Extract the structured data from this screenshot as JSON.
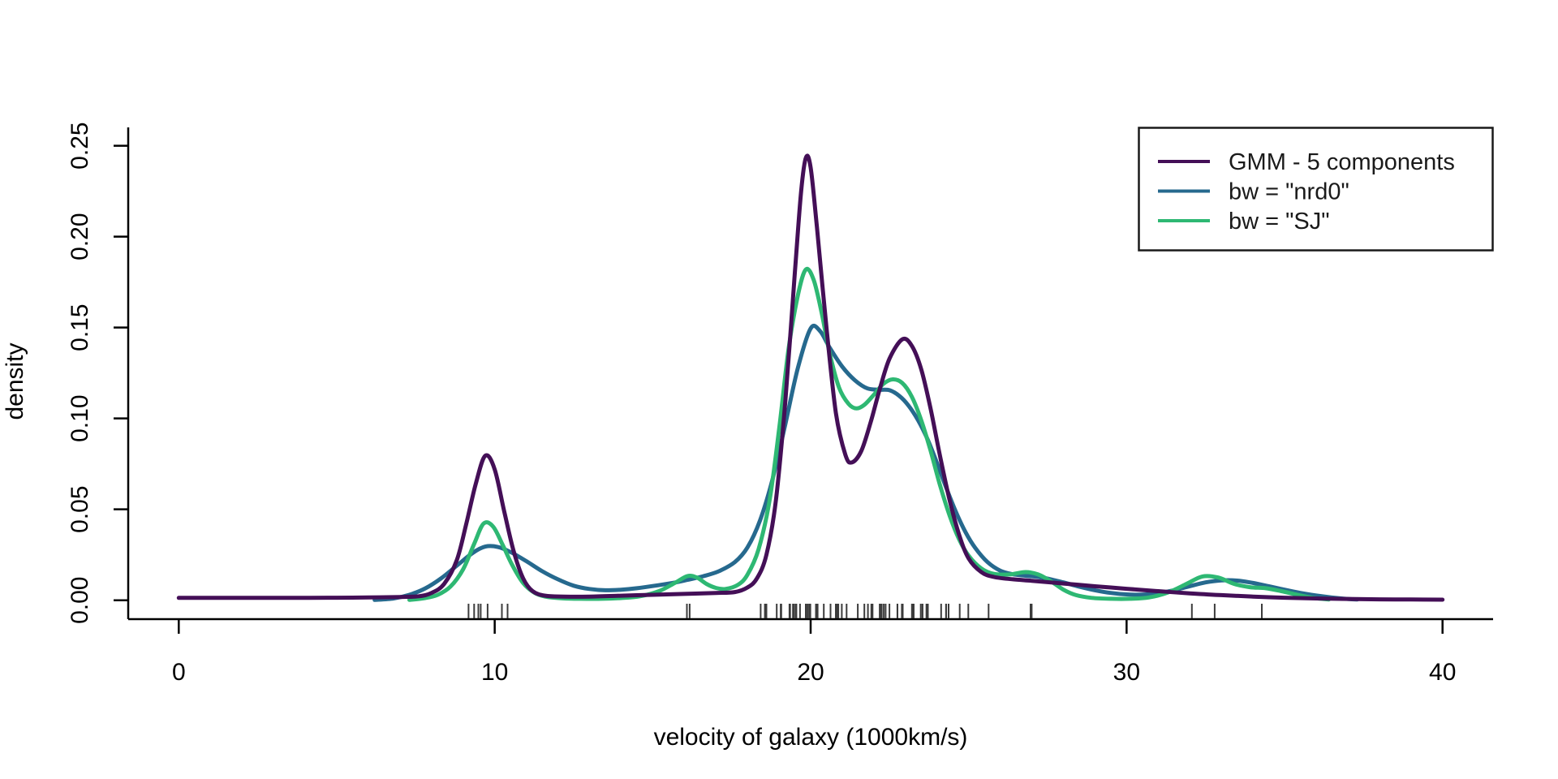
{
  "chart_data": {
    "type": "line",
    "title": "",
    "xlabel": "velocity of galaxy (1000km/s)",
    "ylabel": "density",
    "grid": false,
    "x_tick_labels": [
      "0",
      "10",
      "20",
      "30",
      "40"
    ],
    "x_tick_values": [
      0,
      10,
      20,
      30,
      40
    ],
    "y_tick_labels": [
      "0.00",
      "0.05",
      "0.10",
      "0.15",
      "0.20",
      "0.25"
    ],
    "y_tick_values": [
      0,
      0.05,
      0.1,
      0.15,
      0.2,
      0.25
    ],
    "xlim": [
      -1.6,
      41.6
    ],
    "ylim": [
      -0.0104,
      0.2601
    ],
    "legend": {
      "position": "topright",
      "entries": [
        {
          "label": "GMM - 5 components",
          "color": "#440f57"
        },
        {
          "label": "bw = \"nrd0\"",
          "color": "#26698e"
        },
        {
          "label": "bw = \"SJ\"",
          "color": "#2eb873"
        }
      ]
    },
    "series": [
      {
        "name": "GMM - 5 components",
        "color": "#440f57",
        "points": [
          [
            0,
            0.0013
          ],
          [
            2,
            0.0013
          ],
          [
            4,
            0.0013
          ],
          [
            5,
            0.0014
          ],
          [
            6,
            0.0015
          ],
          [
            7,
            0.0018
          ],
          [
            7.6,
            0.0022
          ],
          [
            8.0,
            0.004
          ],
          [
            8.4,
            0.009
          ],
          [
            8.8,
            0.022
          ],
          [
            9.1,
            0.042
          ],
          [
            9.4,
            0.064
          ],
          [
            9.7,
            0.0795
          ],
          [
            10.0,
            0.072
          ],
          [
            10.3,
            0.049
          ],
          [
            10.6,
            0.027
          ],
          [
            10.9,
            0.012
          ],
          [
            11.2,
            0.005
          ],
          [
            11.6,
            0.0025
          ],
          [
            12.2,
            0.002
          ],
          [
            13,
            0.002
          ],
          [
            14,
            0.0025
          ],
          [
            15,
            0.003
          ],
          [
            16,
            0.0035
          ],
          [
            17,
            0.004
          ],
          [
            17.6,
            0.0045
          ],
          [
            18.0,
            0.007
          ],
          [
            18.3,
            0.012
          ],
          [
            18.6,
            0.025
          ],
          [
            18.9,
            0.055
          ],
          [
            19.2,
            0.11
          ],
          [
            19.5,
            0.18
          ],
          [
            19.7,
            0.225
          ],
          [
            19.85,
            0.2435
          ],
          [
            20.0,
            0.238
          ],
          [
            20.2,
            0.205
          ],
          [
            20.5,
            0.15
          ],
          [
            20.8,
            0.103
          ],
          [
            21.1,
            0.08
          ],
          [
            21.3,
            0.0758
          ],
          [
            21.6,
            0.082
          ],
          [
            21.9,
            0.098
          ],
          [
            22.2,
            0.117
          ],
          [
            22.5,
            0.133
          ],
          [
            22.9,
            0.1435
          ],
          [
            23.2,
            0.14
          ],
          [
            23.5,
            0.127
          ],
          [
            23.8,
            0.105
          ],
          [
            24.1,
            0.079
          ],
          [
            24.4,
            0.055
          ],
          [
            24.7,
            0.036
          ],
          [
            25.0,
            0.023
          ],
          [
            25.4,
            0.0155
          ],
          [
            25.8,
            0.0128
          ],
          [
            26.4,
            0.0115
          ],
          [
            27,
            0.0107
          ],
          [
            28,
            0.0092
          ],
          [
            29,
            0.0077
          ],
          [
            30,
            0.0063
          ],
          [
            31,
            0.005
          ],
          [
            32,
            0.0038
          ],
          [
            33,
            0.0028
          ],
          [
            34,
            0.002
          ],
          [
            35,
            0.0014
          ],
          [
            36,
            0.001
          ],
          [
            37,
            0.0007
          ],
          [
            38,
            0.0005
          ],
          [
            39,
            0.0004
          ],
          [
            40,
            0.0003
          ]
        ]
      },
      {
        "name": "bw = \"nrd0\"",
        "color": "#26698e",
        "points": [
          [
            6.2,
            0.0002
          ],
          [
            6.8,
            0.001
          ],
          [
            7.3,
            0.003
          ],
          [
            7.8,
            0.0065
          ],
          [
            8.3,
            0.012
          ],
          [
            8.8,
            0.019
          ],
          [
            9.3,
            0.026
          ],
          [
            9.7,
            0.0295
          ],
          [
            10.1,
            0.0293
          ],
          [
            10.5,
            0.0265
          ],
          [
            11.0,
            0.0215
          ],
          [
            11.5,
            0.016
          ],
          [
            12.0,
            0.0115
          ],
          [
            12.5,
            0.008
          ],
          [
            13.0,
            0.0062
          ],
          [
            13.5,
            0.0055
          ],
          [
            14.0,
            0.0058
          ],
          [
            14.5,
            0.0066
          ],
          [
            15.0,
            0.0078
          ],
          [
            15.6,
            0.0094
          ],
          [
            16.1,
            0.0112
          ],
          [
            16.6,
            0.0132
          ],
          [
            17.1,
            0.016
          ],
          [
            17.6,
            0.021
          ],
          [
            18.0,
            0.029
          ],
          [
            18.4,
            0.044
          ],
          [
            18.8,
            0.067
          ],
          [
            19.2,
            0.097
          ],
          [
            19.6,
            0.128
          ],
          [
            20.0,
            0.1495
          ],
          [
            20.3,
            0.148
          ],
          [
            20.6,
            0.139
          ],
          [
            21.0,
            0.1285
          ],
          [
            21.4,
            0.121
          ],
          [
            21.8,
            0.1165
          ],
          [
            22.2,
            0.1158
          ],
          [
            22.5,
            0.1155
          ],
          [
            22.8,
            0.1125
          ],
          [
            23.1,
            0.107
          ],
          [
            23.4,
            0.099
          ],
          [
            23.7,
            0.0885
          ],
          [
            24.0,
            0.0755
          ],
          [
            24.3,
            0.0615
          ],
          [
            24.6,
            0.0485
          ],
          [
            24.9,
            0.0375
          ],
          [
            25.2,
            0.029
          ],
          [
            25.6,
            0.021
          ],
          [
            26.0,
            0.0163
          ],
          [
            26.4,
            0.0143
          ],
          [
            26.8,
            0.0135
          ],
          [
            27.2,
            0.0128
          ],
          [
            27.6,
            0.0115
          ],
          [
            28.0,
            0.0098
          ],
          [
            28.5,
            0.0075
          ],
          [
            29.0,
            0.0055
          ],
          [
            29.5,
            0.004
          ],
          [
            30.0,
            0.0032
          ],
          [
            30.5,
            0.0031
          ],
          [
            31.0,
            0.0038
          ],
          [
            31.5,
            0.0055
          ],
          [
            32.0,
            0.0077
          ],
          [
            32.5,
            0.0098
          ],
          [
            33.0,
            0.0109
          ],
          [
            33.5,
            0.0108
          ],
          [
            34.0,
            0.0095
          ],
          [
            34.5,
            0.0077
          ],
          [
            35.0,
            0.0058
          ],
          [
            35.5,
            0.004
          ],
          [
            36.0,
            0.0026
          ],
          [
            36.5,
            0.0015
          ],
          [
            37.0,
            0.0007
          ],
          [
            37.3,
            0.0004
          ]
        ]
      },
      {
        "name": "bw = \"SJ\"",
        "color": "#2eb873",
        "points": [
          [
            7.3,
            0.0002
          ],
          [
            7.8,
            0.0012
          ],
          [
            8.2,
            0.003
          ],
          [
            8.6,
            0.0075
          ],
          [
            9.0,
            0.017
          ],
          [
            9.35,
            0.031
          ],
          [
            9.65,
            0.0422
          ],
          [
            9.95,
            0.0405
          ],
          [
            10.25,
            0.0305
          ],
          [
            10.55,
            0.0195
          ],
          [
            10.9,
            0.0095
          ],
          [
            11.25,
            0.0042
          ],
          [
            11.6,
            0.002
          ],
          [
            12.1,
            0.0011
          ],
          [
            12.7,
            0.0008
          ],
          [
            13.4,
            0.0008
          ],
          [
            14.0,
            0.0012
          ],
          [
            14.6,
            0.0022
          ],
          [
            15.2,
            0.005
          ],
          [
            15.7,
            0.0095
          ],
          [
            16.1,
            0.0133
          ],
          [
            16.4,
            0.0125
          ],
          [
            16.7,
            0.009
          ],
          [
            17.0,
            0.0068
          ],
          [
            17.3,
            0.0062
          ],
          [
            17.7,
            0.0085
          ],
          [
            18.0,
            0.014
          ],
          [
            18.35,
            0.028
          ],
          [
            18.7,
            0.055
          ],
          [
            19.0,
            0.094
          ],
          [
            19.3,
            0.138
          ],
          [
            19.6,
            0.168
          ],
          [
            19.85,
            0.182
          ],
          [
            20.1,
            0.176
          ],
          [
            20.35,
            0.158
          ],
          [
            20.6,
            0.136
          ],
          [
            20.9,
            0.117
          ],
          [
            21.2,
            0.108
          ],
          [
            21.45,
            0.1055
          ],
          [
            21.7,
            0.1075
          ],
          [
            22.0,
            0.113
          ],
          [
            22.3,
            0.119
          ],
          [
            22.6,
            0.1215
          ],
          [
            22.9,
            0.1195
          ],
          [
            23.2,
            0.112
          ],
          [
            23.5,
            0.099
          ],
          [
            23.8,
            0.082
          ],
          [
            24.1,
            0.063
          ],
          [
            24.4,
            0.0465
          ],
          [
            24.7,
            0.0335
          ],
          [
            25.0,
            0.0245
          ],
          [
            25.4,
            0.0175
          ],
          [
            25.8,
            0.0145
          ],
          [
            26.3,
            0.0142
          ],
          [
            26.8,
            0.0155
          ],
          [
            27.2,
            0.0142
          ],
          [
            27.6,
            0.0105
          ],
          [
            28.0,
            0.0058
          ],
          [
            28.4,
            0.0028
          ],
          [
            28.9,
            0.0013
          ],
          [
            29.5,
            0.0008
          ],
          [
            30.1,
            0.0008
          ],
          [
            30.7,
            0.0015
          ],
          [
            31.3,
            0.0042
          ],
          [
            31.9,
            0.009
          ],
          [
            32.4,
            0.0131
          ],
          [
            32.9,
            0.0125
          ],
          [
            33.4,
            0.009
          ],
          [
            33.9,
            0.0072
          ],
          [
            34.4,
            0.0066
          ],
          [
            34.9,
            0.005
          ],
          [
            35.4,
            0.003
          ],
          [
            35.9,
            0.0013
          ],
          [
            36.4,
            0.0004
          ]
        ]
      }
    ],
    "rug_points": [
      9.172,
      9.35,
      9.483,
      9.558,
      9.775,
      10.227,
      10.406,
      16.084,
      16.17,
      18.419,
      18.552,
      18.6,
      18.927,
      19.052,
      19.07,
      19.33,
      19.343,
      19.349,
      19.44,
      19.473,
      19.529,
      19.541,
      19.547,
      19.663,
      19.846,
      19.856,
      19.863,
      19.914,
      19.918,
      19.973,
      19.989,
      20.166,
      20.175,
      20.179,
      20.196,
      20.215,
      20.221,
      20.415,
      20.629,
      20.795,
      20.821,
      20.846,
      20.875,
      20.986,
      21.137,
      21.492,
      21.701,
      21.814,
      21.921,
      21.96,
      22.185,
      22.209,
      22.242,
      22.249,
      22.314,
      22.374,
      22.495,
      22.746,
      22.747,
      22.888,
      22.914,
      23.206,
      23.241,
      23.263,
      23.484,
      23.538,
      23.542,
      23.666,
      23.706,
      23.711,
      24.129,
      24.285,
      24.289,
      24.366,
      24.717,
      24.99,
      25.633,
      26.96,
      26.995,
      32.065,
      32.789,
      34.279
    ]
  }
}
